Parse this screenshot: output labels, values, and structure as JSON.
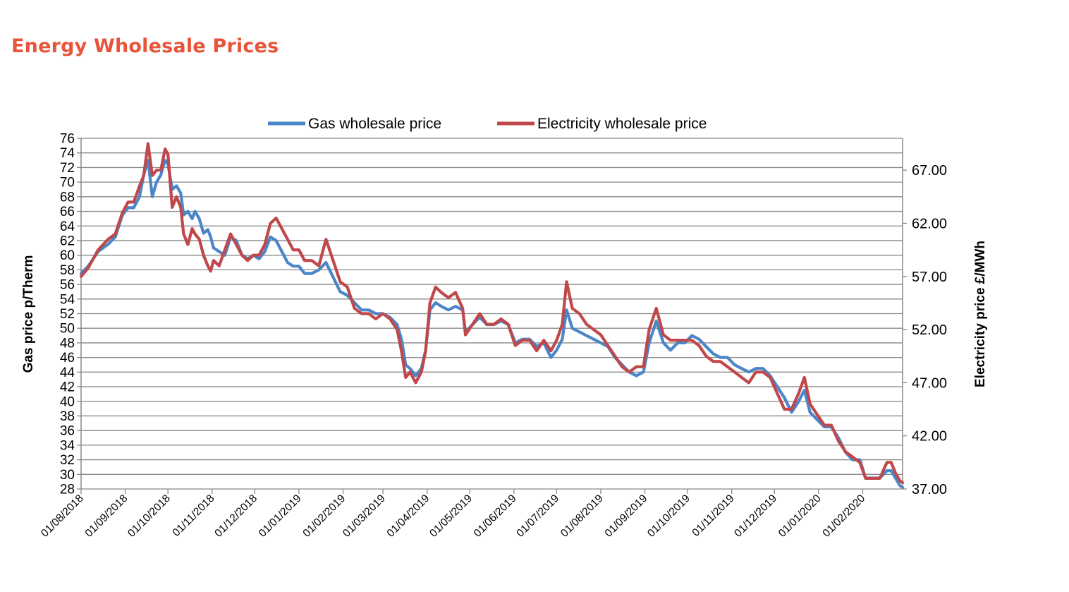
{
  "page": {
    "title": "Energy Wholesale Prices"
  },
  "colors": {
    "title": "#e8543a",
    "gas": "#4a86c8",
    "electricity": "#c0474a",
    "grid": "#888888"
  },
  "chart_data": {
    "type": "line",
    "title": "",
    "legend_position": "top",
    "grid": true,
    "x_axis": {
      "range": [
        "01/08/2018",
        "29/02/2020"
      ],
      "tick_labels": [
        "01/08/2018",
        "01/09/2018",
        "01/10/2018",
        "01/11/2018",
        "01/12/2018",
        "01/01/2019",
        "01/02/2019",
        "01/03/2019",
        "01/04/2019",
        "01/05/2019",
        "01/06/2019",
        "01/07/2019",
        "01/08/2019",
        "01/09/2019",
        "01/10/2019",
        "01/11/2019",
        "01/12/2019",
        "01/01/2020",
        "01/02/2020"
      ]
    },
    "y_left": {
      "label": "Gas price p/Therm",
      "ylim": [
        28,
        76
      ],
      "ticks": [
        "28",
        "30",
        "32",
        "34",
        "36",
        "38",
        "40",
        "42",
        "44",
        "46",
        "48",
        "50",
        "52",
        "54",
        "56",
        "58",
        "60",
        "62",
        "64",
        "66",
        "68",
        "70",
        "72",
        "74",
        "76"
      ]
    },
    "y_right": {
      "label": "Electricity price £/MWh",
      "ylim": [
        37,
        70
      ],
      "ticks": [
        "37.00",
        "42.00",
        "47.00",
        "52.00",
        "57.00",
        "62.00",
        "67.00"
      ]
    },
    "series": [
      {
        "name": "Gas wholesale price",
        "axis": "left",
        "points": [
          [
            "01/08/2018",
            57.5
          ],
          [
            "06/08/2018",
            58.5
          ],
          [
            "13/08/2018",
            60.5
          ],
          [
            "20/08/2018",
            61.5
          ],
          [
            "25/08/2018",
            62.5
          ],
          [
            "30/08/2018",
            65.5
          ],
          [
            "03/09/2018",
            66.5
          ],
          [
            "07/09/2018",
            66.5
          ],
          [
            "11/09/2018",
            68
          ],
          [
            "14/09/2018",
            71
          ],
          [
            "17/09/2018",
            73
          ],
          [
            "20/09/2018",
            68
          ],
          [
            "23/09/2018",
            70
          ],
          [
            "26/09/2018",
            71
          ],
          [
            "29/09/2018",
            73
          ],
          [
            "01/10/2018",
            72.5
          ],
          [
            "04/10/2018",
            69
          ],
          [
            "07/10/2018",
            69.5
          ],
          [
            "10/10/2018",
            68.5
          ],
          [
            "12/10/2018",
            65.5
          ],
          [
            "15/10/2018",
            66
          ],
          [
            "18/10/2018",
            65
          ],
          [
            "20/10/2018",
            66
          ],
          [
            "23/10/2018",
            65
          ],
          [
            "26/10/2018",
            63
          ],
          [
            "29/10/2018",
            63.5
          ],
          [
            "31/10/2018",
            62.5
          ],
          [
            "02/11/2018",
            61
          ],
          [
            "06/11/2018",
            60.5
          ],
          [
            "10/11/2018",
            60
          ],
          [
            "14/11/2018",
            62.5
          ],
          [
            "18/11/2018",
            62
          ],
          [
            "22/11/2018",
            60
          ],
          [
            "26/11/2018",
            59.5
          ],
          [
            "30/11/2018",
            60
          ],
          [
            "04/12/2018",
            59.5
          ],
          [
            "08/12/2018",
            60.5
          ],
          [
            "12/12/2018",
            62.5
          ],
          [
            "16/12/2018",
            62
          ],
          [
            "20/12/2018",
            60.5
          ],
          [
            "24/12/2018",
            59
          ],
          [
            "28/12/2018",
            58.5
          ],
          [
            "01/01/2019",
            58.5
          ],
          [
            "05/01/2019",
            57.5
          ],
          [
            "10/01/2019",
            57.5
          ],
          [
            "15/01/2019",
            58
          ],
          [
            "20/01/2019",
            59
          ],
          [
            "25/01/2019",
            57
          ],
          [
            "30/01/2019",
            55
          ],
          [
            "04/02/2019",
            54.5
          ],
          [
            "09/02/2019",
            53.5
          ],
          [
            "14/02/2019",
            52.5
          ],
          [
            "19/02/2019",
            52.5
          ],
          [
            "24/02/2019",
            52
          ],
          [
            "01/03/2019",
            52
          ],
          [
            "06/03/2019",
            51.5
          ],
          [
            "11/03/2019",
            50.5
          ],
          [
            "14/03/2019",
            48.5
          ],
          [
            "17/03/2019",
            45
          ],
          [
            "20/03/2019",
            44.5
          ],
          [
            "24/03/2019",
            43.5
          ],
          [
            "28/03/2019",
            44.5
          ],
          [
            "31/03/2019",
            47
          ],
          [
            "03/04/2019",
            52.5
          ],
          [
            "07/04/2019",
            53.5
          ],
          [
            "11/04/2019",
            53
          ],
          [
            "16/04/2019",
            52.5
          ],
          [
            "21/04/2019",
            53
          ],
          [
            "26/04/2019",
            52.5
          ],
          [
            "28/04/2019",
            49.5
          ],
          [
            "03/05/2019",
            50.5
          ],
          [
            "08/05/2019",
            51.5
          ],
          [
            "13/05/2019",
            50.5
          ],
          [
            "18/05/2019",
            50.5
          ],
          [
            "23/05/2019",
            51
          ],
          [
            "28/05/2019",
            50.5
          ],
          [
            "02/06/2019",
            48
          ],
          [
            "07/06/2019",
            48.5
          ],
          [
            "12/06/2019",
            48.5
          ],
          [
            "17/06/2019",
            47.5
          ],
          [
            "22/06/2019",
            48
          ],
          [
            "27/06/2019",
            46
          ],
          [
            "01/07/2019",
            47
          ],
          [
            "05/07/2019",
            48.5
          ],
          [
            "08/07/2019",
            52.5
          ],
          [
            "12/07/2019",
            50
          ],
          [
            "17/07/2019",
            49.5
          ],
          [
            "22/07/2019",
            49
          ],
          [
            "27/07/2019",
            48.5
          ],
          [
            "01/08/2019",
            48
          ],
          [
            "06/08/2019",
            47.5
          ],
          [
            "11/08/2019",
            46
          ],
          [
            "16/08/2019",
            45
          ],
          [
            "21/08/2019",
            44
          ],
          [
            "26/08/2019",
            43.5
          ],
          [
            "31/08/2019",
            44
          ],
          [
            "04/09/2019",
            48
          ],
          [
            "09/09/2019",
            51
          ],
          [
            "14/09/2019",
            48
          ],
          [
            "19/09/2019",
            47
          ],
          [
            "24/09/2019",
            48
          ],
          [
            "29/09/2019",
            48
          ],
          [
            "04/10/2019",
            49
          ],
          [
            "09/10/2019",
            48.5
          ],
          [
            "14/10/2019",
            47.5
          ],
          [
            "19/10/2019",
            46.5
          ],
          [
            "24/10/2019",
            46
          ],
          [
            "29/10/2019",
            46
          ],
          [
            "03/11/2019",
            45
          ],
          [
            "08/11/2019",
            44.5
          ],
          [
            "13/11/2019",
            44
          ],
          [
            "18/11/2019",
            44.5
          ],
          [
            "23/11/2019",
            44.5
          ],
          [
            "28/11/2019",
            43.5
          ],
          [
            "03/12/2019",
            42
          ],
          [
            "08/12/2019",
            40.5
          ],
          [
            "13/12/2019",
            38.5
          ],
          [
            "18/12/2019",
            40
          ],
          [
            "22/12/2019",
            41.5
          ],
          [
            "26/12/2019",
            38.5
          ],
          [
            "31/12/2019",
            37.5
          ],
          [
            "05/01/2020",
            36.5
          ],
          [
            "10/01/2020",
            36.5
          ],
          [
            "15/01/2020",
            35
          ],
          [
            "20/01/2020",
            33
          ],
          [
            "25/01/2020",
            32
          ],
          [
            "30/01/2020",
            32
          ],
          [
            "03/02/2020",
            29.5
          ],
          [
            "08/02/2020",
            29.5
          ],
          [
            "13/02/2020",
            29.5
          ],
          [
            "18/02/2020",
            30.5
          ],
          [
            "21/02/2020",
            30.5
          ],
          [
            "24/02/2020",
            29.5
          ],
          [
            "27/02/2020",
            28.5
          ],
          [
            "29/02/2020",
            28.2
          ]
        ]
      },
      {
        "name": "Electricity wholesale price",
        "axis": "right",
        "points": [
          [
            "01/08/2018",
            57
          ],
          [
            "06/08/2018",
            57.8
          ],
          [
            "13/08/2018",
            59.5
          ],
          [
            "20/08/2018",
            60.5
          ],
          [
            "25/08/2018",
            61
          ],
          [
            "30/08/2018",
            63
          ],
          [
            "03/09/2018",
            64
          ],
          [
            "07/09/2018",
            64
          ],
          [
            "11/09/2018",
            65.5
          ],
          [
            "14/09/2018",
            66.5
          ],
          [
            "17/09/2018",
            69.5
          ],
          [
            "20/09/2018",
            66.5
          ],
          [
            "23/09/2018",
            67
          ],
          [
            "26/09/2018",
            67
          ],
          [
            "29/09/2018",
            69
          ],
          [
            "01/10/2018",
            68.5
          ],
          [
            "04/10/2018",
            63.5
          ],
          [
            "07/10/2018",
            64.5
          ],
          [
            "10/10/2018",
            63.5
          ],
          [
            "12/10/2018",
            61
          ],
          [
            "15/10/2018",
            60
          ],
          [
            "18/10/2018",
            61.5
          ],
          [
            "20/10/2018",
            61
          ],
          [
            "23/10/2018",
            60.5
          ],
          [
            "26/10/2018",
            59
          ],
          [
            "29/10/2018",
            58
          ],
          [
            "31/10/2018",
            57.5
          ],
          [
            "02/11/2018",
            58.5
          ],
          [
            "06/11/2018",
            58
          ],
          [
            "10/11/2018",
            59.5
          ],
          [
            "14/11/2018",
            61
          ],
          [
            "18/11/2018",
            60
          ],
          [
            "22/11/2018",
            59
          ],
          [
            "26/11/2018",
            58.5
          ],
          [
            "30/11/2018",
            59
          ],
          [
            "04/12/2018",
            59
          ],
          [
            "08/12/2018",
            60
          ],
          [
            "12/12/2018",
            62
          ],
          [
            "16/12/2018",
            62.5
          ],
          [
            "20/12/2018",
            61.5
          ],
          [
            "24/12/2018",
            60.5
          ],
          [
            "28/12/2018",
            59.5
          ],
          [
            "01/01/2019",
            59.5
          ],
          [
            "05/01/2019",
            58.5
          ],
          [
            "10/01/2019",
            58.5
          ],
          [
            "15/01/2019",
            58
          ],
          [
            "20/01/2019",
            60.5
          ],
          [
            "25/01/2019",
            58.5
          ],
          [
            "30/01/2019",
            56.5
          ],
          [
            "04/02/2019",
            56
          ],
          [
            "09/02/2019",
            54
          ],
          [
            "14/02/2019",
            53.5
          ],
          [
            "19/02/2019",
            53.5
          ],
          [
            "24/02/2019",
            53
          ],
          [
            "01/03/2019",
            53.5
          ],
          [
            "06/03/2019",
            53
          ],
          [
            "11/03/2019",
            52
          ],
          [
            "14/03/2019",
            50
          ],
          [
            "17/03/2019",
            47.5
          ],
          [
            "20/03/2019",
            48
          ],
          [
            "24/03/2019",
            47
          ],
          [
            "28/03/2019",
            48
          ],
          [
            "31/03/2019",
            50
          ],
          [
            "03/04/2019",
            54.5
          ],
          [
            "07/04/2019",
            56
          ],
          [
            "11/04/2019",
            55.5
          ],
          [
            "16/04/2019",
            55
          ],
          [
            "21/04/2019",
            55.5
          ],
          [
            "26/04/2019",
            54
          ],
          [
            "28/04/2019",
            51.5
          ],
          [
            "03/05/2019",
            52.5
          ],
          [
            "08/05/2019",
            53.5
          ],
          [
            "13/05/2019",
            52.5
          ],
          [
            "18/05/2019",
            52.5
          ],
          [
            "23/05/2019",
            53
          ],
          [
            "28/05/2019",
            52.5
          ],
          [
            "02/06/2019",
            50.5
          ],
          [
            "07/06/2019",
            51
          ],
          [
            "12/06/2019",
            51
          ],
          [
            "17/06/2019",
            50
          ],
          [
            "22/06/2019",
            51
          ],
          [
            "27/06/2019",
            50
          ],
          [
            "01/07/2019",
            51
          ],
          [
            "05/07/2019",
            52.5
          ],
          [
            "08/07/2019",
            56.5
          ],
          [
            "12/07/2019",
            54
          ],
          [
            "17/07/2019",
            53.5
          ],
          [
            "22/07/2019",
            52.5
          ],
          [
            "27/07/2019",
            52
          ],
          [
            "01/08/2019",
            51.5
          ],
          [
            "06/08/2019",
            50.5
          ],
          [
            "11/08/2019",
            49.5
          ],
          [
            "16/08/2019",
            48.5
          ],
          [
            "21/08/2019",
            48
          ],
          [
            "26/08/2019",
            48.5
          ],
          [
            "31/08/2019",
            48.5
          ],
          [
            "04/09/2019",
            52
          ],
          [
            "09/09/2019",
            54
          ],
          [
            "14/09/2019",
            51.5
          ],
          [
            "19/09/2019",
            51
          ],
          [
            "24/09/2019",
            51
          ],
          [
            "29/09/2019",
            51
          ],
          [
            "04/10/2019",
            51
          ],
          [
            "09/10/2019",
            50.5
          ],
          [
            "14/10/2019",
            49.5
          ],
          [
            "19/10/2019",
            49
          ],
          [
            "24/10/2019",
            49
          ],
          [
            "29/10/2019",
            48.5
          ],
          [
            "03/11/2019",
            48
          ],
          [
            "08/11/2019",
            47.5
          ],
          [
            "13/11/2019",
            47
          ],
          [
            "18/11/2019",
            48
          ],
          [
            "23/11/2019",
            48
          ],
          [
            "28/11/2019",
            47.5
          ],
          [
            "03/12/2019",
            46
          ],
          [
            "08/12/2019",
            44.5
          ],
          [
            "13/12/2019",
            44.5
          ],
          [
            "18/12/2019",
            46
          ],
          [
            "22/12/2019",
            47.5
          ],
          [
            "26/12/2019",
            45
          ],
          [
            "31/12/2019",
            44
          ],
          [
            "05/01/2020",
            43
          ],
          [
            "10/01/2020",
            43
          ],
          [
            "15/01/2020",
            41.5
          ],
          [
            "20/01/2020",
            40.5
          ],
          [
            "25/01/2020",
            40
          ],
          [
            "30/01/2020",
            39.5
          ],
          [
            "03/02/2020",
            38
          ],
          [
            "08/02/2020",
            38
          ],
          [
            "13/02/2020",
            38
          ],
          [
            "18/02/2020",
            39.5
          ],
          [
            "21/02/2020",
            39.5
          ],
          [
            "24/02/2020",
            38.5
          ],
          [
            "27/02/2020",
            37.8
          ],
          [
            "29/02/2020",
            37.6
          ]
        ]
      }
    ]
  }
}
